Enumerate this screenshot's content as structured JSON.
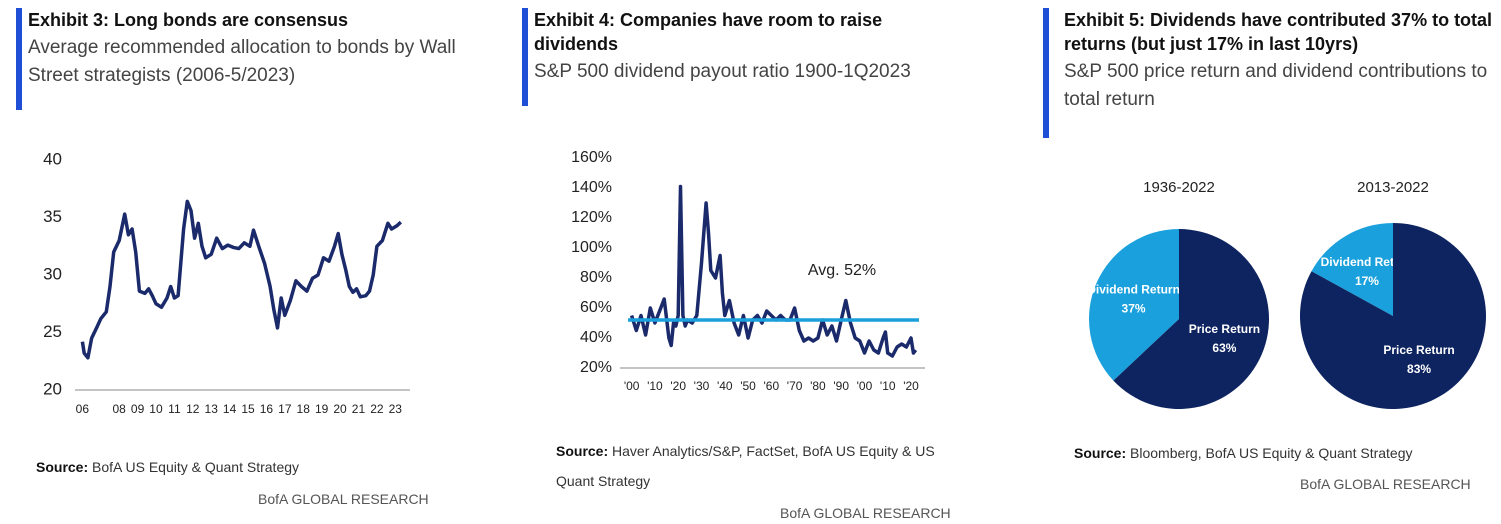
{
  "chart_data": [
    {
      "type": "line",
      "title": "Exhibit 3: Long bonds are consensus",
      "subtitle": "Average recommended allocation to bonds by Wall Street strategists (2006-5/2023)",
      "source_label": "Source:",
      "source": "BofA US Equity & Quant Strategy",
      "footer": "BofA GLOBAL RESEARCH",
      "color": "#1b2a6b",
      "x": [
        2006.0,
        2006.1,
        2006.3,
        2006.5,
        2006.8,
        2007.0,
        2007.3,
        2007.5,
        2007.7,
        2008.0,
        2008.3,
        2008.5,
        2008.7,
        2008.9,
        2009.1,
        2009.4,
        2009.6,
        2009.8,
        2010.0,
        2010.3,
        2010.6,
        2010.8,
        2011.0,
        2011.2,
        2011.5,
        2011.7,
        2011.9,
        2012.1,
        2012.3,
        2012.5,
        2012.7,
        2013.0,
        2013.3,
        2013.6,
        2013.9,
        2014.2,
        2014.5,
        2014.8,
        2015.1,
        2015.3,
        2015.6,
        2015.9,
        2016.2,
        2016.4,
        2016.6,
        2016.8,
        2017.0,
        2017.3,
        2017.6,
        2017.9,
        2018.2,
        2018.5,
        2018.8,
        2019.1,
        2019.4,
        2019.7,
        2019.9,
        2020.1,
        2020.3,
        2020.5,
        2020.7,
        2020.9,
        2021.1,
        2021.4,
        2021.6,
        2021.8,
        2022.0,
        2022.3,
        2022.6,
        2022.8,
        2023.1,
        2023.3
      ],
      "values": [
        24.2,
        23.2,
        22.8,
        24.5,
        25.5,
        26.2,
        26.8,
        29,
        32,
        33,
        35.3,
        33.5,
        34,
        32,
        28.6,
        28.4,
        28.8,
        28.2,
        27.5,
        27.2,
        28,
        29,
        28,
        28.2,
        34,
        36.4,
        35.6,
        33.2,
        34.5,
        32.5,
        31.5,
        31.8,
        33.2,
        32.3,
        32.6,
        32.4,
        32.3,
        32.8,
        32.5,
        33.9,
        32.4,
        31,
        29,
        27,
        25.4,
        28,
        26.5,
        27.8,
        29.5,
        29,
        28.6,
        29.7,
        30,
        31.5,
        31.2,
        32.5,
        33.6,
        31.8,
        30.5,
        29,
        28.5,
        28.8,
        28.1,
        28.2,
        28.6,
        30,
        32.5,
        33,
        34.5,
        34,
        34.3,
        34.6
      ],
      "xlim": [
        2005.6,
        2023.8
      ],
      "ylim": [
        20,
        40
      ],
      "yticks": [
        20,
        25,
        30,
        35,
        40
      ],
      "xticks": [
        {
          "value": 2006,
          "label": "06"
        },
        {
          "value": 2008,
          "label": "08"
        },
        {
          "value": 2009,
          "label": "09"
        },
        {
          "value": 2010,
          "label": "10"
        },
        {
          "value": 2011,
          "label": "11"
        },
        {
          "value": 2012,
          "label": "12"
        },
        {
          "value": 2013,
          "label": "13"
        },
        {
          "value": 2014,
          "label": "14"
        },
        {
          "value": 2015,
          "label": "15"
        },
        {
          "value": 2016,
          "label": "16"
        },
        {
          "value": 2017,
          "label": "17"
        },
        {
          "value": 2018,
          "label": "18"
        },
        {
          "value": 2019,
          "label": "19"
        },
        {
          "value": 2020,
          "label": "20"
        },
        {
          "value": 2021,
          "label": "21"
        },
        {
          "value": 2022,
          "label": "22"
        },
        {
          "value": 2023,
          "label": "23"
        }
      ]
    },
    {
      "type": "line",
      "title": "Exhibit 4: Companies have room to raise dividends",
      "subtitle": "S&P 500 dividend payout ratio 1900-1Q2023",
      "source_label": "Source:",
      "source": "Haver Analytics/S&P, FactSet, BofA US Equity & US Quant Strategy",
      "footer": "BofA GLOBAL RESEARCH",
      "color": "#1b2a6b",
      "average": 52,
      "average_label": "Avg. 52%",
      "average_color": "#1aa0dc",
      "x": [
        1900,
        1902,
        1904,
        1906,
        1908,
        1910,
        1912,
        1914,
        1916,
        1917,
        1918,
        1919,
        1920,
        1921,
        1922,
        1923,
        1924,
        1926,
        1928,
        1930,
        1931,
        1932,
        1933,
        1934,
        1936,
        1938,
        1939,
        1940,
        1942,
        1944,
        1946,
        1948,
        1950,
        1952,
        1954,
        1956,
        1958,
        1960,
        1962,
        1964,
        1966,
        1968,
        1970,
        1972,
        1974,
        1976,
        1978,
        1980,
        1982,
        1984,
        1986,
        1988,
        1990,
        1992,
        1994,
        1996,
        1998,
        2000,
        2002,
        2004,
        2006,
        2008,
        2009,
        2010,
        2012,
        2014,
        2016,
        2018,
        2020,
        2021,
        2022
      ],
      "values": [
        55,
        45,
        55,
        42,
        60,
        50,
        58,
        66,
        40,
        35,
        50,
        48,
        55,
        141,
        55,
        48,
        52,
        50,
        55,
        90,
        110,
        130,
        110,
        85,
        80,
        95,
        70,
        55,
        65,
        50,
        42,
        55,
        40,
        52,
        55,
        50,
        58,
        55,
        52,
        55,
        52,
        52,
        60,
        45,
        38,
        40,
        38,
        40,
        52,
        42,
        48,
        38,
        52,
        65,
        50,
        40,
        38,
        30,
        38,
        32,
        30,
        40,
        44,
        30,
        28,
        34,
        36,
        34,
        40,
        30,
        32
      ],
      "xlim": [
        1895,
        2026
      ],
      "ylim": [
        20,
        160
      ],
      "yticks": [
        {
          "value": 20,
          "label": "20%"
        },
        {
          "value": 40,
          "label": "40%"
        },
        {
          "value": 60,
          "label": "60%"
        },
        {
          "value": 80,
          "label": "80%"
        },
        {
          "value": 100,
          "label": "100%"
        },
        {
          "value": 120,
          "label": "120%"
        },
        {
          "value": 140,
          "label": "140%"
        },
        {
          "value": 160,
          "label": "160%"
        }
      ],
      "xticks": [
        {
          "value": 1900,
          "label": "'00"
        },
        {
          "value": 1910,
          "label": "'10"
        },
        {
          "value": 1920,
          "label": "'20"
        },
        {
          "value": 1930,
          "label": "'30"
        },
        {
          "value": 1940,
          "label": "'40"
        },
        {
          "value": 1950,
          "label": "'50"
        },
        {
          "value": 1960,
          "label": "'60"
        },
        {
          "value": 1970,
          "label": "'70"
        },
        {
          "value": 1980,
          "label": "'80"
        },
        {
          "value": 1990,
          "label": "'90"
        },
        {
          "value": 2000,
          "label": "'00"
        },
        {
          "value": 2010,
          "label": "'10"
        },
        {
          "value": 2020,
          "label": "'20"
        }
      ]
    },
    {
      "type": "pie",
      "title": "Exhibit 5: Dividends have contributed 37% to total returns (but just 17% in last 10yrs)",
      "subtitle": "S&P 500 price return and dividend contributions to total return",
      "source_label": "Source:",
      "source": "Bloomberg, BofA US Equity & Quant Strategy",
      "footer": "BofA GLOBAL RESEARCH",
      "colors": [
        "#1aa0dc",
        "#0e2460"
      ],
      "pies": [
        {
          "title": "1936-2022",
          "categories": [
            "Dividend Return",
            "Price Return"
          ],
          "values": [
            37,
            63
          ],
          "value_labels": [
            "37%",
            "63%"
          ]
        },
        {
          "title": "2013-2022",
          "categories": [
            "Dividend Return",
            "Price Return"
          ],
          "values": [
            17,
            83
          ],
          "value_labels": [
            "17%",
            "83%"
          ]
        }
      ]
    }
  ]
}
